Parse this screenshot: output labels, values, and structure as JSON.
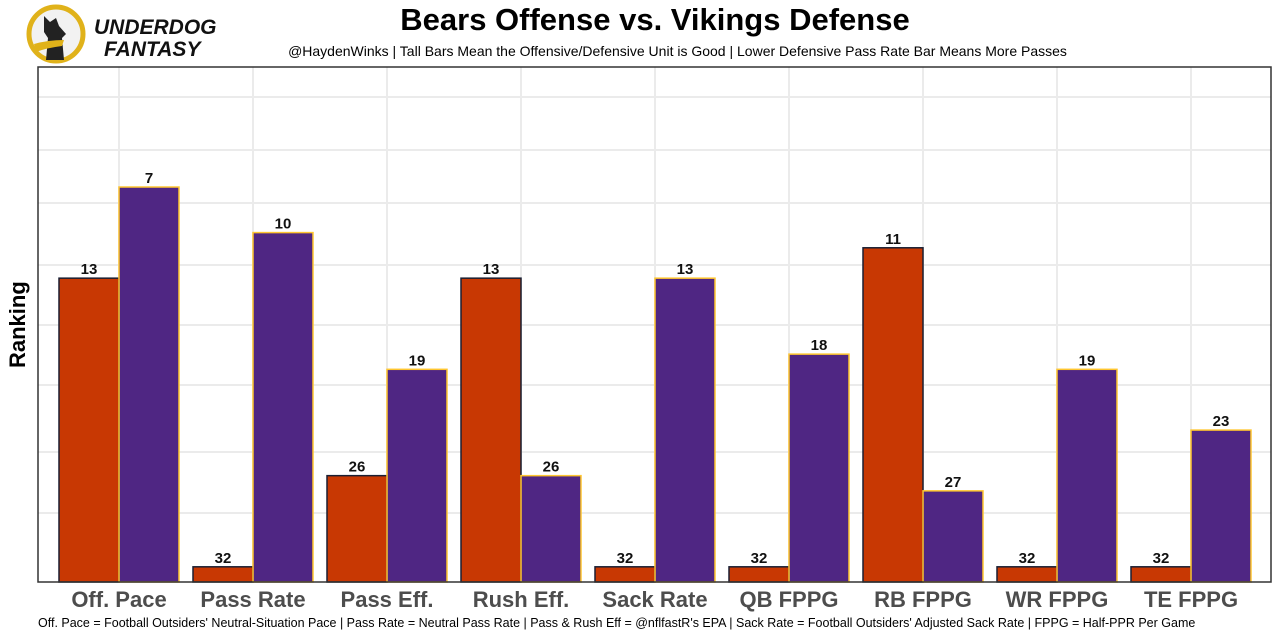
{
  "brand": {
    "line1": "UNDERDOG",
    "line2": "FANTASY"
  },
  "chart_data": {
    "type": "bar",
    "title": "Bears Offense vs. Vikings Defense",
    "subtitle": "@HaydenWinks | Tall Bars Mean the Offensive/Defensive Unit is Good | Lower Defensive Pass Rate Bar Means More Passes",
    "xlabel": "",
    "ylabel": "Ranking",
    "caption": "Off. Pace = Football Outsiders' Neutral-Situation Pace | Pass Rate = Neutral Pass Rate | Pass & Rush Eff = @nflfastR's EPA | Sack Rate = Football Outsiders' Adjusted Sack Rate | FPPG = Half-PPR Per Game",
    "categories": [
      "Off. Pace",
      "Pass Rate",
      "Pass Eff.",
      "Rush Eff.",
      "Sack Rate",
      "QB FPPG",
      "RB FPPG",
      "WR FPPG",
      "TE FPPG"
    ],
    "series": [
      {
        "name": "Bears Offense",
        "color": "#C83803",
        "border": "#1a1f33",
        "values": [
          13,
          32,
          26,
          13,
          32,
          32,
          11,
          32,
          32
        ]
      },
      {
        "name": "Vikings Defense",
        "color": "#4F2683",
        "border": "#FFC62F",
        "values": [
          7,
          10,
          19,
          26,
          13,
          18,
          27,
          19,
          23
        ]
      }
    ],
    "bar_height_rule": "33 - rank",
    "ylim": [
      0,
      33.9
    ],
    "grid": true
  }
}
